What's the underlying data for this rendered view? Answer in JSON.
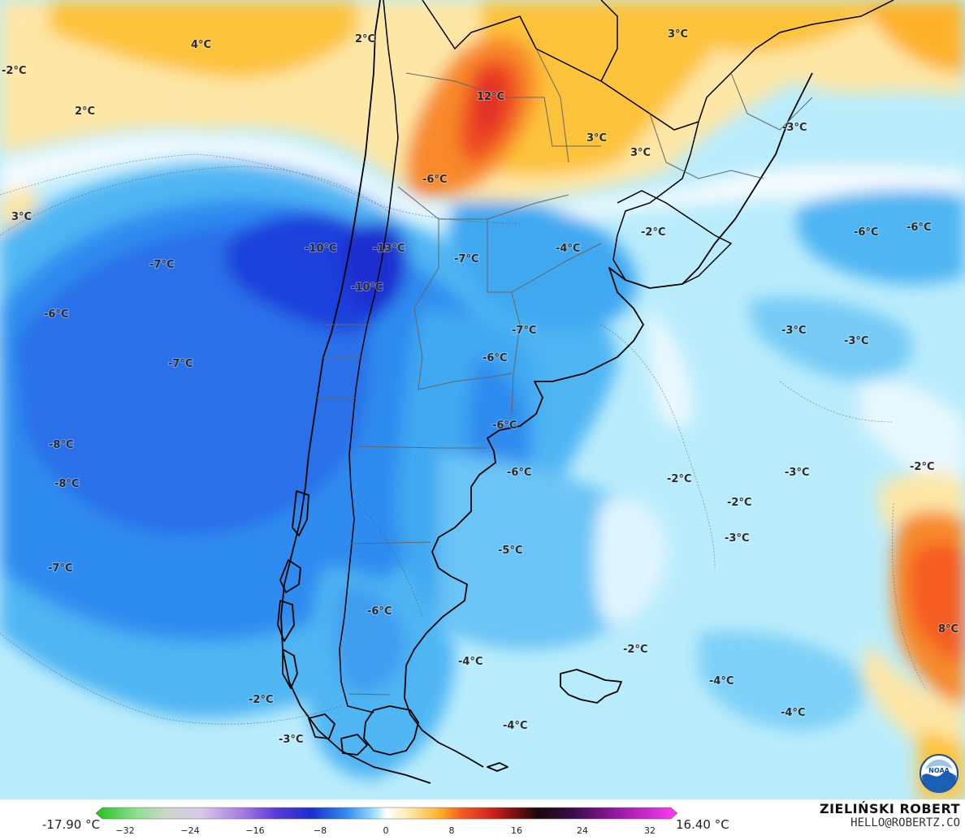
{
  "colorbar": {
    "min_label": "-17.90 °C",
    "max_label": "16.40 °C",
    "ticks": [
      "−32",
      "−24",
      "−16",
      "−8",
      "0",
      "8",
      "16",
      "24",
      "32"
    ]
  },
  "credit": {
    "name": "ZIELIŃSKI ROBERT",
    "email": "HELLO@ROBERTZ.CO"
  },
  "logo": {
    "text": "NOAA"
  },
  "labels": [
    {
      "id": "l01",
      "text": "4°C"
    },
    {
      "id": "l02",
      "text": "2°C"
    },
    {
      "id": "l03",
      "text": "-2°C"
    },
    {
      "id": "l04",
      "text": "2°C"
    },
    {
      "id": "l05",
      "text": "3°C"
    },
    {
      "id": "l06",
      "text": "12°C"
    },
    {
      "id": "l07",
      "text": "3°C"
    },
    {
      "id": "l08",
      "text": "3°C"
    },
    {
      "id": "l09",
      "text": "3°C"
    },
    {
      "id": "l10",
      "text": "-3°C"
    },
    {
      "id": "l11",
      "text": "-6°C"
    },
    {
      "id": "l12",
      "text": "-10°C"
    },
    {
      "id": "l13",
      "text": "-13°C"
    },
    {
      "id": "l14",
      "text": "-10°C"
    },
    {
      "id": "l15",
      "text": "-7°C"
    },
    {
      "id": "l16",
      "text": "-7°C"
    },
    {
      "id": "l17",
      "text": "-4°C"
    },
    {
      "id": "l18",
      "text": "-2°C"
    },
    {
      "id": "l19",
      "text": "-6°C"
    },
    {
      "id": "l20",
      "text": "-6°C"
    },
    {
      "id": "l21",
      "text": "-6°C"
    },
    {
      "id": "l22",
      "text": "-7°C"
    },
    {
      "id": "l23",
      "text": "-7°C"
    },
    {
      "id": "l24",
      "text": "-6°C"
    },
    {
      "id": "l25",
      "text": "-3°C"
    },
    {
      "id": "l26",
      "text": "-3°C"
    },
    {
      "id": "l27",
      "text": "-6°C"
    },
    {
      "id": "l28",
      "text": "-8°C"
    },
    {
      "id": "l29",
      "text": "-8°C"
    },
    {
      "id": "l30",
      "text": "-6°C"
    },
    {
      "id": "l31",
      "text": "-2°C"
    },
    {
      "id": "l32",
      "text": "-3°C"
    },
    {
      "id": "l33",
      "text": "-2°C"
    },
    {
      "id": "l34",
      "text": "-2°C"
    },
    {
      "id": "l35",
      "text": "-3°C"
    },
    {
      "id": "l36",
      "text": "-7°C"
    },
    {
      "id": "l37",
      "text": "-5°C"
    },
    {
      "id": "l38",
      "text": "-6°C"
    },
    {
      "id": "l39",
      "text": "8°C"
    },
    {
      "id": "l40",
      "text": "-2°C"
    },
    {
      "id": "l41",
      "text": "-4°C"
    },
    {
      "id": "l42",
      "text": "-4°C"
    },
    {
      "id": "l43",
      "text": "-4°C"
    },
    {
      "id": "l44",
      "text": "-2°C"
    },
    {
      "id": "l45",
      "text": "-3°C"
    },
    {
      "id": "l46",
      "text": "-4°C"
    }
  ]
}
